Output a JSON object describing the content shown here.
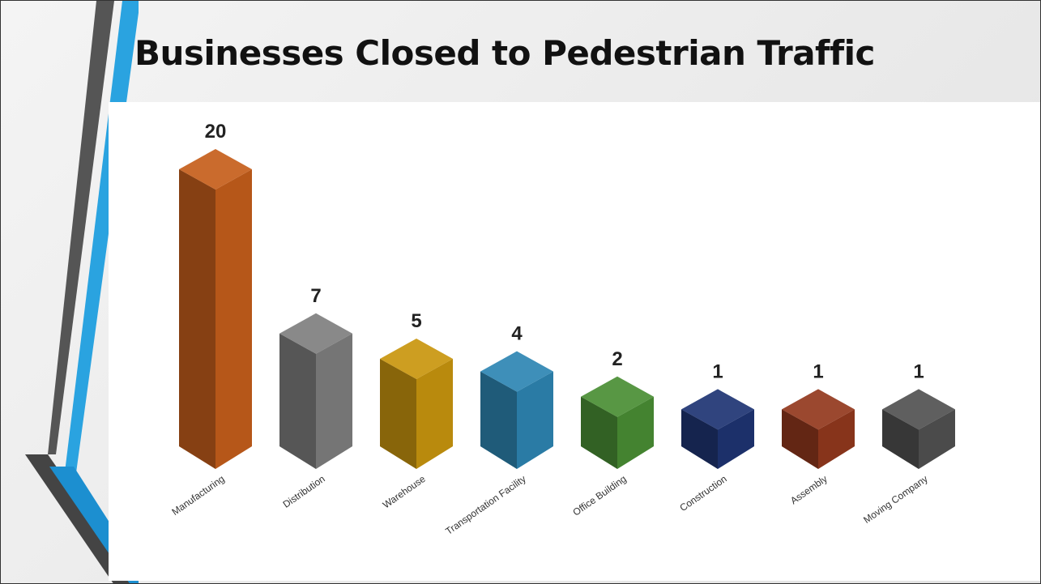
{
  "chart_data": {
    "type": "bar3d",
    "title": "Businesses Closed to Pedestrian Traffic",
    "categories": [
      "Manufacturing",
      "Distribution",
      "Warehouse",
      "Transportation Facility",
      "Office Building",
      "Construction",
      "Assembly",
      "Moving Company"
    ],
    "values": [
      20,
      7,
      5,
      4,
      2,
      1,
      1,
      1
    ],
    "colors": [
      "#c65f1c",
      "#7f7f7f",
      "#c9960f",
      "#2e86b3",
      "#4a8f35",
      "#1f3574",
      "#93391e",
      "#525252"
    ]
  }
}
